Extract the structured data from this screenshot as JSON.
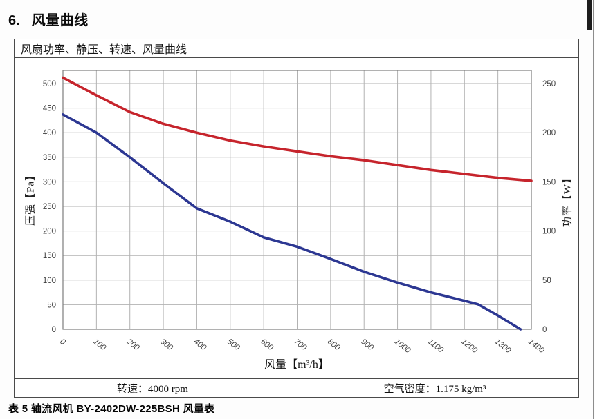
{
  "page": {
    "section_number": "6.",
    "section_title": "风量曲线",
    "caption": "表 5 轴流风机 BY-2402DW-225BSH 风量表"
  },
  "panel": {
    "header": "风扇功率、静压、转速、风量曲线",
    "footer": {
      "speed": "转速：4000 rpm",
      "density": "空气密度：1.175 kg/m³"
    }
  },
  "chart_data": {
    "type": "line",
    "title": "风扇功率、静压、转速、风量曲线",
    "xlabel": "风量【m³/h】",
    "ylabel_left": "压强【Pa】",
    "ylabel_right": "功率【W】",
    "xlim": [
      0,
      1400
    ],
    "ylim_left": [
      0,
      500
    ],
    "ylim_right": [
      0,
      250
    ],
    "x_ticks": [
      0,
      100,
      200,
      300,
      400,
      500,
      600,
      700,
      800,
      900,
      1000,
      1100,
      1200,
      1300,
      1400
    ],
    "y_ticks_left": [
      0,
      50,
      100,
      150,
      200,
      250,
      300,
      350,
      400,
      450,
      500
    ],
    "y_ticks_right": [
      0,
      50,
      100,
      150,
      200,
      250
    ],
    "grid": true,
    "legend": "none",
    "conditions": {
      "speed": "4000 rpm",
      "air_density": "1.175 kg/m³"
    },
    "series": [
      {
        "name": "压强",
        "unit": "Pa",
        "axis": "left",
        "color": "#2c3792",
        "points": [
          [
            0,
            437
          ],
          [
            100,
            400
          ],
          [
            200,
            350
          ],
          [
            300,
            297
          ],
          [
            400,
            246
          ],
          [
            500,
            219
          ],
          [
            600,
            187
          ],
          [
            700,
            168
          ],
          [
            800,
            143
          ],
          [
            900,
            117
          ],
          [
            1000,
            95
          ],
          [
            1100,
            75
          ],
          [
            1200,
            58
          ],
          [
            1240,
            51
          ],
          [
            1300,
            28
          ],
          [
            1368,
            0
          ]
        ]
      },
      {
        "name": "功率",
        "unit": "W",
        "axis": "right",
        "color": "#c6242c",
        "points": [
          [
            0,
            256
          ],
          [
            100,
            238
          ],
          [
            200,
            221
          ],
          [
            300,
            209
          ],
          [
            400,
            200
          ],
          [
            500,
            192
          ],
          [
            600,
            186
          ],
          [
            700,
            181
          ],
          [
            800,
            176
          ],
          [
            900,
            172
          ],
          [
            1000,
            167
          ],
          [
            1100,
            162
          ],
          [
            1200,
            158
          ],
          [
            1300,
            154
          ],
          [
            1400,
            151
          ]
        ]
      }
    ]
  }
}
